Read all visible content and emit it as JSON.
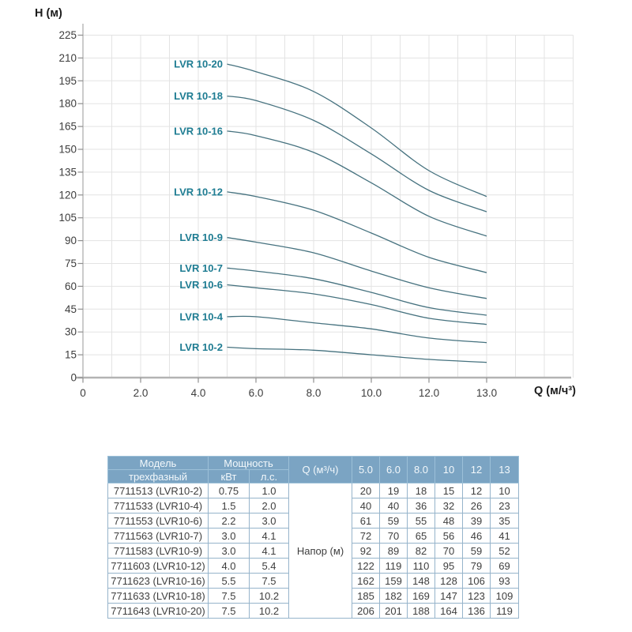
{
  "chart": {
    "y_axis_title": "Н (м)",
    "x_axis_title": "Q (м/ч³)",
    "colors": {
      "curve": "#46727f",
      "series_label": "#1e7c92",
      "grid": "#e3e3e3",
      "axis_line": "#a9a9a9",
      "x_axis_line": "#b3b3b3",
      "tick": "#8f8f8f",
      "tick_label": "#3d3d3d"
    }
  },
  "chart_data": {
    "type": "line",
    "title": "",
    "xlabel": "Q (м/ч³)",
    "ylabel": "Н (м)",
    "grid": true,
    "legend_position": "inline-left-of-curves",
    "x": [
      5.0,
      6.0,
      8.0,
      10,
      12,
      13
    ],
    "x_tick_labels": [
      "0",
      "2.0",
      "4.0",
      "6.0",
      "8.0",
      "10.0",
      "12.0",
      "13.0"
    ],
    "x_tick_values": [
      0,
      2,
      4,
      6,
      8,
      10,
      12,
      13
    ],
    "ylim": [
      0,
      225
    ],
    "y_tick_step": 15,
    "series": [
      {
        "name": "LVR 10-20",
        "values": [
          206,
          201,
          188,
          164,
          136,
          119
        ]
      },
      {
        "name": "LVR 10-18",
        "values": [
          185,
          182,
          169,
          147,
          123,
          109
        ]
      },
      {
        "name": "LVR 10-16",
        "values": [
          162,
          159,
          148,
          128,
          106,
          93
        ]
      },
      {
        "name": "LVR 10-12",
        "values": [
          122,
          119,
          110,
          95,
          79,
          69
        ]
      },
      {
        "name": "LVR 10-9",
        "values": [
          92,
          89,
          82,
          70,
          59,
          52
        ]
      },
      {
        "name": "LVR 10-7",
        "values": [
          72,
          70,
          65,
          56,
          46,
          41
        ]
      },
      {
        "name": "LVR 10-6",
        "values": [
          61,
          59,
          55,
          48,
          39,
          35
        ]
      },
      {
        "name": "LVR 10-4",
        "values": [
          40,
          40,
          36,
          32,
          26,
          23
        ]
      },
      {
        "name": "LVR 10-2",
        "values": [
          20,
          19,
          18,
          15,
          12,
          10
        ]
      }
    ]
  },
  "table": {
    "header": {
      "model_top": "Модель",
      "model_bottom": "трехфазный",
      "power": "Мощность",
      "power_kw": "кВт",
      "power_hp": "л.с.",
      "q_label": "Q (м³/ч)",
      "flow_cols": [
        "5.0",
        "6.0",
        "8.0",
        "10",
        "12",
        "13"
      ]
    },
    "head_col_label": "Напор (м)",
    "rows": [
      {
        "model": "7711513 (LVR10-2)",
        "kw": "0.75",
        "hp": "1.0",
        "values": [
          20,
          19,
          18,
          15,
          12,
          10
        ]
      },
      {
        "model": "7711533 (LVR10-4)",
        "kw": "1.5",
        "hp": "2.0",
        "values": [
          40,
          40,
          36,
          32,
          26,
          23
        ]
      },
      {
        "model": "7711553 (LVR10-6)",
        "kw": "2.2",
        "hp": "3.0",
        "values": [
          61,
          59,
          55,
          48,
          39,
          35
        ]
      },
      {
        "model": "7711563 (LVR10-7)",
        "kw": "3.0",
        "hp": "4.1",
        "values": [
          72,
          70,
          65,
          56,
          46,
          41
        ]
      },
      {
        "model": "7711583 (LVR10-9)",
        "kw": "3.0",
        "hp": "4.1",
        "values": [
          92,
          89,
          82,
          70,
          59,
          52
        ]
      },
      {
        "model": "7711603 (LVR10-12)",
        "kw": "4.0",
        "hp": "5.4",
        "values": [
          122,
          119,
          110,
          95,
          79,
          69
        ]
      },
      {
        "model": "7711623 (LVR10-16)",
        "kw": "5.5",
        "hp": "7.5",
        "values": [
          162,
          159,
          148,
          128,
          106,
          93
        ]
      },
      {
        "model": "7711633 (LVR10-18)",
        "kw": "7.5",
        "hp": "10.2",
        "values": [
          185,
          182,
          169,
          147,
          123,
          109
        ]
      },
      {
        "model": "7711643 (LVR10-20)",
        "kw": "7.5",
        "hp": "10.2",
        "values": [
          206,
          201,
          188,
          164,
          136,
          119
        ]
      }
    ]
  }
}
